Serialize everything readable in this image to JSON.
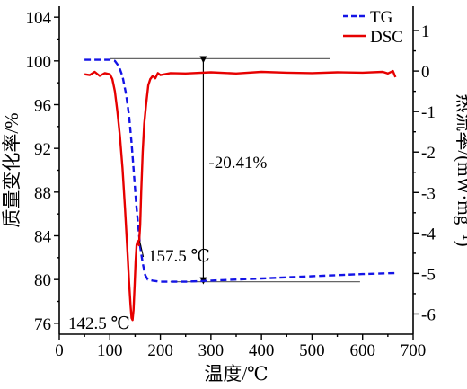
{
  "chart_data": {
    "type": "line",
    "xlabel": "温度/℃",
    "ylabel_left": "质量变化率/%",
    "ylabel_right": "热流率/(mW·mg⁻¹)",
    "xlim": [
      0,
      700
    ],
    "xticks": [
      0,
      100,
      200,
      300,
      400,
      500,
      600,
      700
    ],
    "ylim_left": [
      75,
      105
    ],
    "yticks_left": [
      76,
      80,
      84,
      88,
      92,
      96,
      100,
      104
    ],
    "ylim_right": [
      -6.5,
      1.6
    ],
    "yticks_right": [
      1,
      0,
      -1,
      -2,
      -3,
      -4,
      -5,
      -6
    ],
    "legend_position": "top-right",
    "series": [
      {
        "name": "TG",
        "axis": "left",
        "color": "#1414e6",
        "dash": "dashed",
        "x": [
          50,
          100,
          110,
          118,
          125,
          132,
          138,
          143,
          148,
          152,
          156,
          160,
          165,
          170,
          175,
          185,
          200,
          250,
          300,
          400,
          500,
          600,
          670
        ],
        "y": [
          100.1,
          100.1,
          100.0,
          99.5,
          98.6,
          97.0,
          95.0,
          92.5,
          89.5,
          87.0,
          85.0,
          83.0,
          81.5,
          80.4,
          80.0,
          79.9,
          79.8,
          79.8,
          79.9,
          80.1,
          80.3,
          80.5,
          80.6
        ]
      },
      {
        "name": "DSC",
        "axis": "right",
        "color": "#e60000",
        "dash": "solid",
        "x": [
          50,
          60,
          70,
          80,
          90,
          100,
          105,
          110,
          115,
          120,
          125,
          130,
          135,
          138,
          141,
          143,
          145,
          147,
          149,
          151,
          153,
          155,
          157.5,
          160,
          162,
          165,
          168,
          172,
          176,
          180,
          185,
          190,
          195,
          200,
          220,
          250,
          300,
          350,
          400,
          450,
          500,
          550,
          600,
          640,
          650,
          660,
          665
        ],
        "y": [
          -0.08,
          -0.1,
          -0.02,
          -0.12,
          -0.05,
          -0.08,
          -0.2,
          -0.5,
          -1.0,
          -1.6,
          -2.4,
          -3.4,
          -4.5,
          -5.2,
          -5.8,
          -6.1,
          -6.15,
          -5.9,
          -5.3,
          -4.7,
          -4.3,
          -4.2,
          -4.3,
          -3.8,
          -3.0,
          -2.0,
          -1.3,
          -0.8,
          -0.35,
          -0.2,
          -0.12,
          -0.18,
          -0.05,
          -0.1,
          -0.05,
          -0.06,
          -0.03,
          -0.06,
          -0.02,
          -0.04,
          -0.05,
          -0.03,
          -0.04,
          -0.02,
          -0.06,
          -0.0,
          -0.15
        ]
      }
    ],
    "annotations": [
      {
        "id": "mass-loss",
        "text": "-20.41%"
      },
      {
        "id": "peak-1",
        "text": "157.5 ℃",
        "x": 157.5
      },
      {
        "id": "peak-2",
        "text": "142.5 ℃",
        "x": 142.5
      }
    ],
    "reference_lines": [
      {
        "id": "ref-top",
        "axis": "left",
        "y": 100.2,
        "x": [
          100,
          535
        ]
      },
      {
        "id": "ref-bottom",
        "axis": "left",
        "y": 79.8,
        "x": [
          220,
          595
        ]
      }
    ],
    "mass_change_arrow": {
      "x": 285,
      "y_from": 100.2,
      "y_to": 79.8
    }
  }
}
